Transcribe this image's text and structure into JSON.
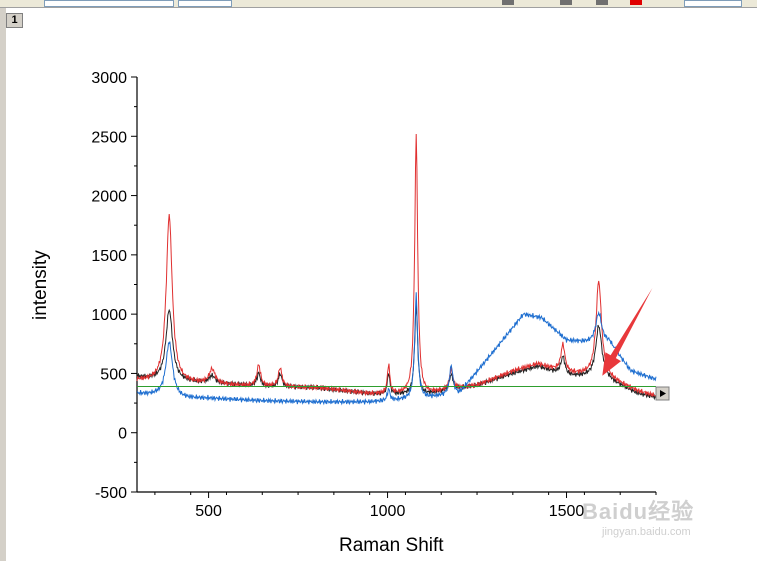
{
  "window": {
    "layer_tab": "1"
  },
  "watermark": {
    "text": "Baidu经验",
    "sub": "jingyan.baidu.com"
  },
  "chart_data": {
    "type": "line",
    "xlabel": "Raman Shift",
    "ylabel": "intensity",
    "xlim": [
      300,
      1750
    ],
    "ylim": [
      -500,
      3000
    ],
    "xticks": [
      500,
      1000,
      1500
    ],
    "yticks": [
      -500,
      0,
      500,
      1000,
      1500,
      2000,
      2500,
      3000
    ],
    "xtick_labels": [
      "500",
      "1000",
      "1500"
    ],
    "ytick_labels": [
      "-500",
      "0",
      "500",
      "1000",
      "1500",
      "2000",
      "2500",
      "3000"
    ],
    "grid": false,
    "series": [
      {
        "color": "#222222",
        "baseline": [
          [
            300,
            470
          ],
          [
            380,
            440
          ],
          [
            500,
            420
          ],
          [
            650,
            390
          ],
          [
            800,
            380
          ],
          [
            950,
            330
          ],
          [
            1100,
            320
          ],
          [
            1250,
            400
          ],
          [
            1350,
            500
          ],
          [
            1420,
            560
          ],
          [
            1500,
            480
          ],
          [
            1600,
            470
          ],
          [
            1700,
            330
          ],
          [
            1750,
            300
          ]
        ],
        "peaks": [
          [
            390,
            600,
            11
          ],
          [
            510,
            60,
            10
          ],
          [
            640,
            110,
            6
          ],
          [
            700,
            110,
            6
          ],
          [
            1003,
            180,
            4
          ],
          [
            1080,
            760,
            5
          ],
          [
            1178,
            130,
            6
          ],
          [
            1490,
            150,
            7
          ],
          [
            1590,
            430,
            10
          ]
        ]
      },
      {
        "color": "#e03030",
        "baseline": [
          [
            300,
            440
          ],
          [
            380,
            420
          ],
          [
            500,
            410
          ],
          [
            650,
            390
          ],
          [
            800,
            380
          ],
          [
            950,
            330
          ],
          [
            1100,
            320
          ],
          [
            1250,
            400
          ],
          [
            1350,
            520
          ],
          [
            1420,
            580
          ],
          [
            1500,
            500
          ],
          [
            1600,
            480
          ],
          [
            1700,
            350
          ],
          [
            1750,
            310
          ]
        ],
        "peaks": [
          [
            390,
            1420,
            10
          ],
          [
            510,
            120,
            10
          ],
          [
            640,
            180,
            6
          ],
          [
            700,
            160,
            6
          ],
          [
            1003,
            250,
            4
          ],
          [
            1080,
            2200,
            5
          ],
          [
            1178,
            170,
            6
          ],
          [
            1490,
            230,
            7
          ],
          [
            1590,
            800,
            9
          ]
        ]
      },
      {
        "color": "#1f6fd0",
        "baseline": [
          [
            300,
            330
          ],
          [
            380,
            310
          ],
          [
            420,
            290
          ],
          [
            500,
            290
          ],
          [
            650,
            270
          ],
          [
            800,
            260
          ],
          [
            950,
            260
          ],
          [
            1100,
            290
          ],
          [
            1200,
            330
          ],
          [
            1300,
            700
          ],
          [
            1380,
            1000
          ],
          [
            1430,
            970
          ],
          [
            1500,
            780
          ],
          [
            1560,
            760
          ],
          [
            1620,
            760
          ],
          [
            1680,
            520
          ],
          [
            1750,
            450
          ]
        ],
        "peaks": [
          [
            390,
            460,
            11
          ],
          [
            1003,
            100,
            4
          ],
          [
            1080,
            880,
            5
          ],
          [
            1178,
            240,
            6
          ],
          [
            1590,
            250,
            10
          ]
        ]
      },
      {
        "color": "#2e9e2e",
        "baseline": [
          [
            300,
            390
          ],
          [
            1750,
            390
          ]
        ],
        "peaks": []
      }
    ],
    "annotations": [
      {
        "type": "arrow",
        "color": "#e8383b",
        "from": [
          1740,
          1220
        ],
        "to": [
          1600,
          480
        ]
      }
    ]
  }
}
